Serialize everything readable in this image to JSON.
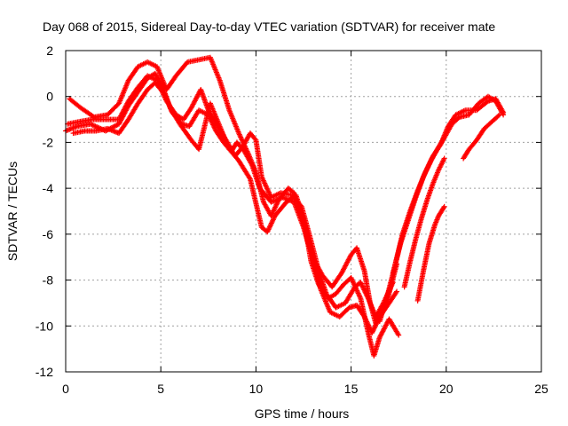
{
  "chart_data": {
    "type": "scatter",
    "title": "Day 068 of 2015, Sidereal Day-to-day VTEC variation (SDTVAR) for receiver mate",
    "xlabel": "GPS time / hours",
    "ylabel": "SDTVAR / TECUs",
    "xlim": [
      0,
      25
    ],
    "ylim": [
      -12,
      2
    ],
    "xticks": [
      0,
      5,
      10,
      15,
      20,
      25
    ],
    "yticks": [
      -12,
      -10,
      -8,
      -6,
      -4,
      -2,
      0,
      2
    ],
    "grid": true,
    "marker": "plus",
    "color": "#ff0000",
    "series": [
      {
        "points": [
          [
            0.2,
            -0.1
          ],
          [
            0.8,
            -0.5
          ],
          [
            1.5,
            -0.9
          ],
          [
            2.2,
            -0.8
          ],
          [
            2.8,
            -0.3
          ],
          [
            3.3,
            0.7
          ],
          [
            3.8,
            1.3
          ],
          [
            4.3,
            1.5
          ],
          [
            4.8,
            1.3
          ],
          [
            5.3,
            0.3
          ],
          [
            5.8,
            0.9
          ],
          [
            6.4,
            1.5
          ],
          [
            7.0,
            1.6
          ],
          [
            7.6,
            1.7
          ],
          [
            8.1,
            0.7
          ],
          [
            8.6,
            -0.6
          ],
          [
            9.1,
            -1.6
          ],
          [
            9.6,
            -2.5
          ],
          [
            10.0,
            -3.3
          ],
          [
            10.4,
            -4.6
          ],
          [
            10.8,
            -5.2
          ],
          [
            11.2,
            -4.5
          ],
          [
            11.7,
            -4.0
          ],
          [
            12.0,
            -4.2
          ],
          [
            12.4,
            -5.2
          ],
          [
            12.7,
            -6.3
          ],
          [
            13.1,
            -7.2
          ],
          [
            13.5,
            -7.8
          ],
          [
            14.0,
            -8.3
          ],
          [
            14.5,
            -7.7
          ],
          [
            15.0,
            -6.9
          ],
          [
            15.3,
            -6.6
          ],
          [
            15.7,
            -7.6
          ],
          [
            16.0,
            -9.0
          ],
          [
            16.3,
            -9.9
          ],
          [
            16.8,
            -9.2
          ],
          [
            17.4,
            -7.3
          ]
        ]
      },
      {
        "points": [
          [
            0.0,
            -1.5
          ],
          [
            0.6,
            -1.3
          ],
          [
            1.3,
            -1.2
          ],
          [
            2.1,
            -1.5
          ],
          [
            2.8,
            -1.2
          ],
          [
            3.3,
            -0.4
          ],
          [
            3.8,
            0.2
          ],
          [
            4.3,
            0.8
          ],
          [
            4.7,
            1.0
          ],
          [
            5.1,
            0.4
          ],
          [
            5.5,
            -0.5
          ],
          [
            6.0,
            -1.2
          ],
          [
            6.6,
            -1.9
          ],
          [
            7.0,
            -2.3
          ],
          [
            7.6,
            -0.3
          ],
          [
            8.1,
            -1.3
          ],
          [
            8.6,
            -2.3
          ],
          [
            9.1,
            -2.8
          ],
          [
            9.7,
            -3.6
          ],
          [
            10.3,
            -5.7
          ],
          [
            10.6,
            -5.9
          ],
          [
            11.0,
            -5.2
          ],
          [
            11.6,
            -4.6
          ],
          [
            12.1,
            -4.3
          ],
          [
            12.5,
            -5.3
          ],
          [
            12.9,
            -7.2
          ],
          [
            13.3,
            -8.2
          ],
          [
            13.8,
            -8.8
          ],
          [
            14.2,
            -8.6
          ],
          [
            14.6,
            -8.2
          ],
          [
            15.0,
            -7.9
          ],
          [
            15.5,
            -8.8
          ],
          [
            15.9,
            -10.3
          ],
          [
            16.2,
            -11.3
          ],
          [
            16.5,
            -10.5
          ],
          [
            17.0,
            -9.7
          ],
          [
            17.5,
            -10.4
          ]
        ]
      },
      {
        "points": [
          [
            0.1,
            -1.2
          ],
          [
            0.7,
            -1.1
          ],
          [
            1.4,
            -1.0
          ],
          [
            2.2,
            -1.0
          ],
          [
            2.8,
            -1.0
          ],
          [
            3.3,
            -0.2
          ],
          [
            3.8,
            0.4
          ],
          [
            4.3,
            0.9
          ],
          [
            4.8,
            0.7
          ],
          [
            5.3,
            -0.2
          ],
          [
            5.8,
            -0.8
          ],
          [
            6.2,
            -1.0
          ],
          [
            6.6,
            -0.5
          ],
          [
            7.1,
            0.3
          ],
          [
            7.5,
            -0.6
          ],
          [
            8.0,
            -1.3
          ],
          [
            8.5,
            -2.0
          ],
          [
            8.9,
            -2.6
          ],
          [
            9.3,
            -2.2
          ],
          [
            9.7,
            -1.6
          ],
          [
            10.0,
            -1.9
          ],
          [
            10.3,
            -3.5
          ],
          [
            10.8,
            -4.4
          ],
          [
            11.3,
            -4.2
          ],
          [
            11.9,
            -4.3
          ],
          [
            12.4,
            -4.8
          ],
          [
            12.8,
            -6.0
          ],
          [
            13.3,
            -7.6
          ],
          [
            13.7,
            -8.6
          ],
          [
            14.2,
            -9.2
          ],
          [
            14.7,
            -9.0
          ],
          [
            15.2,
            -8.3
          ],
          [
            15.5,
            -8.1
          ],
          [
            15.9,
            -8.8
          ],
          [
            16.3,
            -9.6
          ],
          [
            16.7,
            -9.0
          ],
          [
            17.2,
            -8.1
          ]
        ]
      },
      {
        "points": [
          [
            0.4,
            -1.6
          ],
          [
            1.0,
            -1.5
          ],
          [
            1.6,
            -1.5
          ],
          [
            2.2,
            -1.4
          ],
          [
            2.8,
            -1.6
          ],
          [
            3.3,
            -1.0
          ],
          [
            3.8,
            -0.3
          ],
          [
            4.3,
            0.3
          ],
          [
            4.7,
            0.6
          ],
          [
            5.2,
            0.1
          ],
          [
            5.6,
            -0.7
          ],
          [
            6.1,
            -1.2
          ],
          [
            6.5,
            -1.3
          ],
          [
            7.0,
            -0.6
          ],
          [
            7.5,
            -0.8
          ],
          [
            7.9,
            -1.5
          ],
          [
            8.3,
            -2.0
          ],
          [
            8.7,
            -2.4
          ],
          [
            9.0,
            -2.0
          ],
          [
            9.4,
            -2.4
          ],
          [
            9.8,
            -3.0
          ],
          [
            10.2,
            -4.0
          ],
          [
            10.8,
            -4.6
          ],
          [
            11.4,
            -4.4
          ],
          [
            12.0,
            -4.6
          ],
          [
            12.5,
            -5.7
          ],
          [
            12.9,
            -6.8
          ],
          [
            13.4,
            -8.4
          ],
          [
            13.9,
            -9.4
          ],
          [
            14.4,
            -9.6
          ],
          [
            14.9,
            -9.2
          ],
          [
            15.3,
            -9.1
          ],
          [
            15.7,
            -9.6
          ],
          [
            16.1,
            -10.3
          ],
          [
            16.5,
            -9.6
          ],
          [
            17.0,
            -9.0
          ],
          [
            17.4,
            -8.5
          ]
        ]
      },
      {
        "points": [
          [
            16.5,
            -9.8
          ],
          [
            16.9,
            -8.7
          ],
          [
            17.3,
            -7.4
          ],
          [
            17.7,
            -6.0
          ],
          [
            18.1,
            -5.0
          ],
          [
            18.5,
            -4.1
          ],
          [
            18.9,
            -3.3
          ],
          [
            19.3,
            -2.6
          ],
          [
            19.7,
            -2.1
          ],
          [
            20.1,
            -1.3
          ],
          [
            20.5,
            -0.8
          ],
          [
            21.0,
            -0.6
          ],
          [
            21.6,
            -0.6
          ],
          [
            22.2,
            -0.2
          ],
          [
            22.6,
            -0.1
          ],
          [
            23.0,
            -0.7
          ]
        ]
      },
      {
        "points": [
          [
            17.2,
            -7.7
          ],
          [
            17.6,
            -6.4
          ],
          [
            18.0,
            -5.4
          ],
          [
            18.4,
            -4.4
          ],
          [
            18.8,
            -3.5
          ],
          [
            19.2,
            -2.8
          ],
          [
            19.6,
            -2.2
          ],
          [
            19.9,
            -1.8
          ],
          [
            20.3,
            -1.2
          ],
          [
            20.7,
            -0.9
          ],
          [
            21.2,
            -0.8
          ],
          [
            21.7,
            -0.3
          ],
          [
            22.2,
            0.0
          ],
          [
            22.6,
            -0.2
          ],
          [
            23.0,
            -0.8
          ]
        ]
      },
      {
        "points": [
          [
            18.5,
            -8.9
          ],
          [
            18.8,
            -7.6
          ],
          [
            19.1,
            -6.4
          ],
          [
            19.4,
            -5.6
          ],
          [
            19.6,
            -5.2
          ],
          [
            19.9,
            -4.8
          ]
        ]
      },
      {
        "points": [
          [
            17.8,
            -8.3
          ],
          [
            18.1,
            -7.2
          ],
          [
            18.4,
            -6.2
          ],
          [
            18.7,
            -5.3
          ],
          [
            19.0,
            -4.5
          ],
          [
            19.3,
            -3.8
          ],
          [
            19.6,
            -3.2
          ],
          [
            19.9,
            -2.7
          ]
        ]
      },
      {
        "points": [
          [
            20.9,
            -2.7
          ],
          [
            21.2,
            -2.3
          ],
          [
            21.6,
            -1.9
          ],
          [
            22.0,
            -1.4
          ],
          [
            22.4,
            -1.1
          ],
          [
            22.8,
            -0.8
          ]
        ]
      }
    ]
  }
}
